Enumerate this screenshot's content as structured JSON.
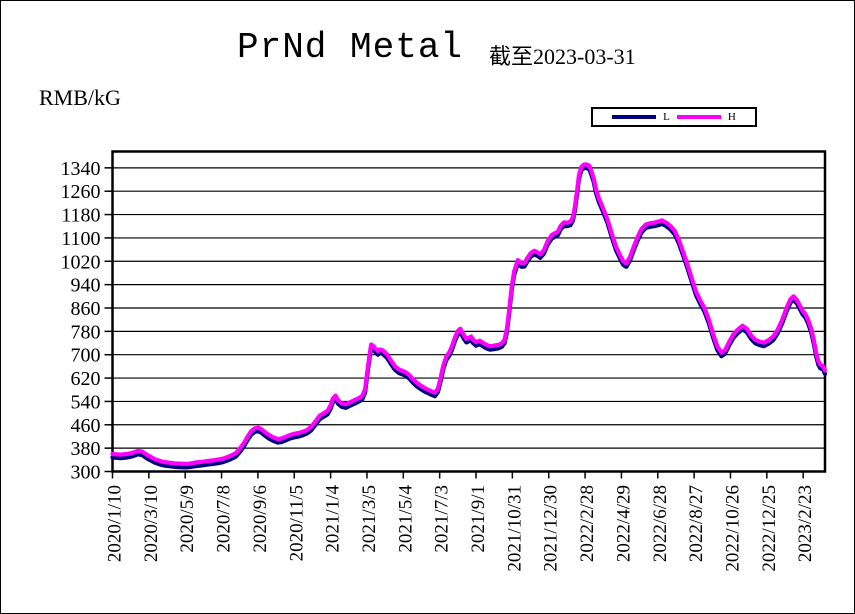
{
  "title": "PrNd Metal",
  "subtitle": "截至2023-03-31",
  "unit_label": "RMB/kG",
  "legend": {
    "l_label": "L",
    "h_label": "H"
  },
  "colors": {
    "l_series": "#000080",
    "h_series": "#FF00FF",
    "grid": "#000000",
    "text": "#000000",
    "background": "#FFFFFF"
  },
  "chart_data": {
    "type": "line",
    "title": "PrNd Metal",
    "subtitle": "截至2023-03-31",
    "ylabel": "RMB/kG",
    "xlabel": "",
    "grid": "horizontal",
    "legend_position": "top-right",
    "ylim": [
      300,
      1396
    ],
    "yticks": [
      300,
      380,
      460,
      540,
      620,
      700,
      780,
      860,
      940,
      1020,
      1100,
      1180,
      1260,
      1340
    ],
    "x_start": "2020/1/10",
    "x_end": "2023/3/31",
    "xtick_labels": [
      "2020/1/10",
      "2020/3/10",
      "2020/5/9",
      "2020/7/8",
      "2020/9/6",
      "2020/11/5",
      "2021/1/4",
      "2021/3/5",
      "2021/5/4",
      "2021/7/3",
      "2021/9/1",
      "2021/10/31",
      "2021/12/30",
      "2022/2/28",
      "2022/4/29",
      "2022/6/28",
      "2022/8/27",
      "2022/10/26",
      "2022/12/25",
      "2023/2/23"
    ],
    "series": [
      {
        "name": "L",
        "color": "#000080",
        "offset_from_h": -12
      },
      {
        "name": "H",
        "color": "#FF00FF",
        "offset_from_h": 0
      }
    ],
    "points_note": "each point is [date, H value in RMB/kG]; L = H + offset_from_h",
    "points": [
      [
        "2020/1/10",
        360
      ],
      [
        "2020/1/17",
        359
      ],
      [
        "2020/1/23",
        358
      ],
      [
        "2020/2/3",
        360
      ],
      [
        "2020/2/12",
        364
      ],
      [
        "2020/2/21",
        371
      ],
      [
        "2020/2/28",
        368
      ],
      [
        "2020/3/6",
        358
      ],
      [
        "2020/3/13",
        350
      ],
      [
        "2020/3/20",
        342
      ],
      [
        "2020/3/27",
        337
      ],
      [
        "2020/4/3",
        333
      ],
      [
        "2020/4/13",
        330
      ],
      [
        "2020/4/21",
        328
      ],
      [
        "2020/4/29",
        327
      ],
      [
        "2020/5/11",
        326
      ],
      [
        "2020/5/19",
        328
      ],
      [
        "2020/5/27",
        331
      ],
      [
        "2020/6/5",
        333
      ],
      [
        "2020/6/15",
        336
      ],
      [
        "2020/6/24",
        338
      ],
      [
        "2020/7/3",
        341
      ],
      [
        "2020/7/10",
        344
      ],
      [
        "2020/7/17",
        349
      ],
      [
        "2020/7/24",
        355
      ],
      [
        "2020/7/31",
        362
      ],
      [
        "2020/8/7",
        378
      ],
      [
        "2020/8/14",
        398
      ],
      [
        "2020/8/20",
        420
      ],
      [
        "2020/8/26",
        438
      ],
      [
        "2020/9/1",
        448
      ],
      [
        "2020/9/7",
        450
      ],
      [
        "2020/9/11",
        446
      ],
      [
        "2020/9/17",
        436
      ],
      [
        "2020/9/24",
        425
      ],
      [
        "2020/10/1",
        417
      ],
      [
        "2020/10/9",
        411
      ],
      [
        "2020/10/15",
        413
      ],
      [
        "2020/10/22",
        419
      ],
      [
        "2020/10/29",
        425
      ],
      [
        "2020/11/5",
        429
      ],
      [
        "2020/11/12",
        432
      ],
      [
        "2020/11/19",
        436
      ],
      [
        "2020/11/26",
        442
      ],
      [
        "2020/12/3",
        453
      ],
      [
        "2020/12/10",
        472
      ],
      [
        "2020/12/17",
        491
      ],
      [
        "2020/12/24",
        500
      ],
      [
        "2020/12/30",
        508
      ],
      [
        "2021/1/4",
        527
      ],
      [
        "2021/1/8",
        550
      ],
      [
        "2021/1/12",
        560
      ],
      [
        "2021/1/16",
        545
      ],
      [
        "2021/1/22",
        534
      ],
      [
        "2021/1/29",
        530
      ],
      [
        "2021/2/5",
        537
      ],
      [
        "2021/2/12",
        544
      ],
      [
        "2021/2/19",
        551
      ],
      [
        "2021/2/25",
        558
      ],
      [
        "2021/3/2",
        582
      ],
      [
        "2021/3/5",
        635
      ],
      [
        "2021/3/9",
        697
      ],
      [
        "2021/3/12",
        735
      ],
      [
        "2021/3/16",
        729
      ],
      [
        "2021/3/19",
        721
      ],
      [
        "2021/3/23",
        712
      ],
      [
        "2021/3/26",
        718
      ],
      [
        "2021/3/31",
        715
      ],
      [
        "2021/4/7",
        701
      ],
      [
        "2021/4/13",
        682
      ],
      [
        "2021/4/20",
        661
      ],
      [
        "2021/4/27",
        649
      ],
      [
        "2021/5/6",
        642
      ],
      [
        "2021/5/13",
        632
      ],
      [
        "2021/5/20",
        616
      ],
      [
        "2021/5/27",
        602
      ],
      [
        "2021/6/4",
        591
      ],
      [
        "2021/6/11",
        583
      ],
      [
        "2021/6/18",
        576
      ],
      [
        "2021/6/25",
        570
      ],
      [
        "2021/6/30",
        584
      ],
      [
        "2021/7/5",
        625
      ],
      [
        "2021/7/9",
        663
      ],
      [
        "2021/7/14",
        694
      ],
      [
        "2021/7/19",
        709
      ],
      [
        "2021/7/23",
        727
      ],
      [
        "2021/7/28",
        758
      ],
      [
        "2021/8/2",
        781
      ],
      [
        "2021/8/6",
        789
      ],
      [
        "2021/8/11",
        770
      ],
      [
        "2021/8/16",
        754
      ],
      [
        "2021/8/20",
        758
      ],
      [
        "2021/8/24",
        762
      ],
      [
        "2021/8/27",
        752
      ],
      [
        "2021/9/1",
        743
      ],
      [
        "2021/9/7",
        748
      ],
      [
        "2021/9/13",
        740
      ],
      [
        "2021/9/18",
        734
      ],
      [
        "2021/9/24",
        729
      ],
      [
        "2021/9/30",
        731
      ],
      [
        "2021/10/8",
        734
      ],
      [
        "2021/10/13",
        738
      ],
      [
        "2021/10/18",
        751
      ],
      [
        "2021/10/22",
        789
      ],
      [
        "2021/10/26",
        858
      ],
      [
        "2021/10/30",
        936
      ],
      [
        "2021/11/3",
        986
      ],
      [
        "2021/11/9",
        1024
      ],
      [
        "2021/11/15",
        1013
      ],
      [
        "2021/11/20",
        1014
      ],
      [
        "2021/11/25",
        1032
      ],
      [
        "2021/11/30",
        1047
      ],
      [
        "2021/12/6",
        1056
      ],
      [
        "2021/12/11",
        1051
      ],
      [
        "2021/12/16",
        1044
      ],
      [
        "2021/12/22",
        1058
      ],
      [
        "2021/12/28",
        1088
      ],
      [
        "2022/1/4",
        1110
      ],
      [
        "2022/1/10",
        1117
      ],
      [
        "2022/1/14",
        1121
      ],
      [
        "2022/1/19",
        1142
      ],
      [
        "2022/1/24",
        1153
      ],
      [
        "2022/1/29",
        1152
      ],
      [
        "2022/2/4",
        1156
      ],
      [
        "2022/2/8",
        1172
      ],
      [
        "2022/2/11",
        1205
      ],
      [
        "2022/2/15",
        1265
      ],
      [
        "2022/2/18",
        1316
      ],
      [
        "2022/2/22",
        1344
      ],
      [
        "2022/2/26",
        1351
      ],
      [
        "2022/3/2",
        1352
      ],
      [
        "2022/3/7",
        1347
      ],
      [
        "2022/3/10",
        1331
      ],
      [
        "2022/3/14",
        1305
      ],
      [
        "2022/3/18",
        1266
      ],
      [
        "2022/3/23",
        1234
      ],
      [
        "2022/3/29",
        1205
      ],
      [
        "2022/4/6",
        1163
      ],
      [
        "2022/4/13",
        1115
      ],
      [
        "2022/4/20",
        1070
      ],
      [
        "2022/4/26",
        1044
      ],
      [
        "2022/5/2",
        1020
      ],
      [
        "2022/5/7",
        1013
      ],
      [
        "2022/5/13",
        1034
      ],
      [
        "2022/5/19",
        1068
      ],
      [
        "2022/5/26",
        1105
      ],
      [
        "2022/6/1",
        1130
      ],
      [
        "2022/6/8",
        1146
      ],
      [
        "2022/6/15",
        1150
      ],
      [
        "2022/6/22",
        1152
      ],
      [
        "2022/6/29",
        1156
      ],
      [
        "2022/7/5",
        1160
      ],
      [
        "2022/7/12",
        1152
      ],
      [
        "2022/7/19",
        1141
      ],
      [
        "2022/7/26",
        1124
      ],
      [
        "2022/8/2",
        1092
      ],
      [
        "2022/8/9",
        1051
      ],
      [
        "2022/8/16",
        1008
      ],
      [
        "2022/8/23",
        962
      ],
      [
        "2022/8/30",
        916
      ],
      [
        "2022/9/6",
        886
      ],
      [
        "2022/9/13",
        860
      ],
      [
        "2022/9/20",
        821
      ],
      [
        "2022/9/27",
        773
      ],
      [
        "2022/10/4",
        729
      ],
      [
        "2022/10/11",
        707
      ],
      [
        "2022/10/17",
        715
      ],
      [
        "2022/10/24",
        745
      ],
      [
        "2022/10/31",
        770
      ],
      [
        "2022/11/7",
        786
      ],
      [
        "2022/11/15",
        799
      ],
      [
        "2022/11/22",
        789
      ],
      [
        "2022/11/29",
        766
      ],
      [
        "2022/12/6",
        751
      ],
      [
        "2022/12/13",
        745
      ],
      [
        "2022/12/20",
        741
      ],
      [
        "2022/12/28",
        750
      ],
      [
        "2023/1/5",
        763
      ],
      [
        "2023/1/12",
        786
      ],
      [
        "2023/1/19",
        818
      ],
      [
        "2023/1/27",
        862
      ],
      [
        "2023/2/2",
        890
      ],
      [
        "2023/2/7",
        900
      ],
      [
        "2023/2/13",
        886
      ],
      [
        "2023/2/17",
        870
      ],
      [
        "2023/2/22",
        850
      ],
      [
        "2023/2/27",
        838
      ],
      [
        "2023/3/3",
        820
      ],
      [
        "2023/3/8",
        790
      ],
      [
        "2023/3/13",
        745
      ],
      [
        "2023/3/16",
        710
      ],
      [
        "2023/3/20",
        678
      ],
      [
        "2023/3/23",
        666
      ],
      [
        "2023/3/28",
        661
      ],
      [
        "2023/3/31",
        646
      ]
    ]
  }
}
